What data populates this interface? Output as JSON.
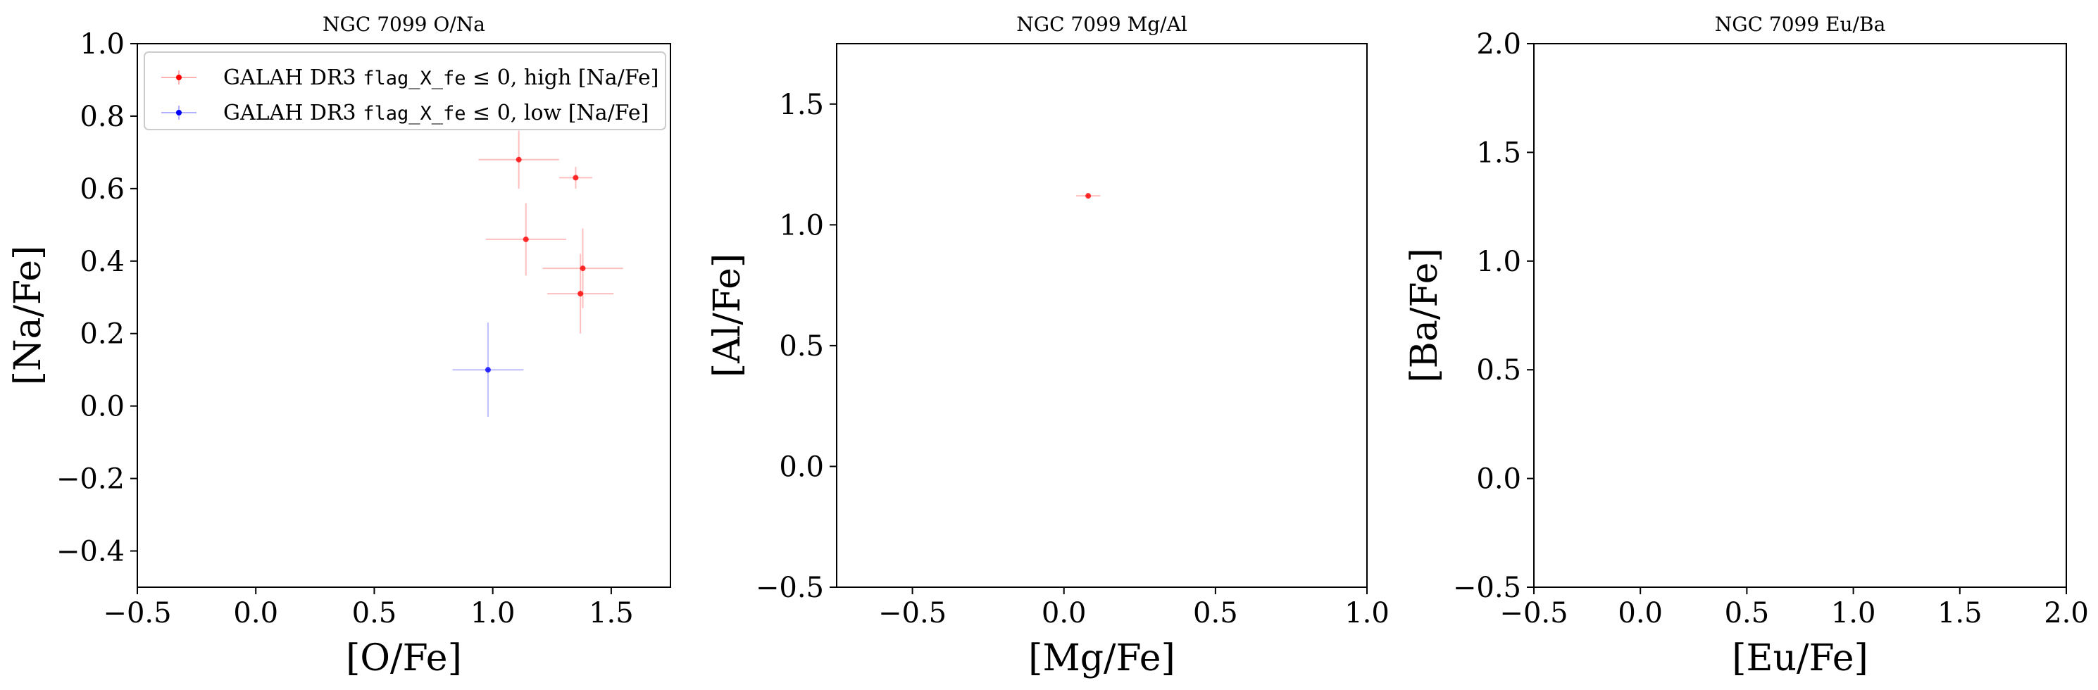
{
  "figure": {
    "background": "#ffffff"
  },
  "colors": {
    "high": "#ff0000",
    "low": "#0000ff",
    "axis": "#000000",
    "legend_border": "#cccccc"
  },
  "chart_data": [
    {
      "type": "scatter",
      "title": "NGC 7099 O/Na",
      "xlabel": "[O/Fe]",
      "ylabel": "[Na/Fe]",
      "xlim": [
        -0.5,
        1.75
      ],
      "ylim": [
        -0.5,
        1.0
      ],
      "xticks": [
        -0.5,
        0.0,
        0.5,
        1.0,
        1.5
      ],
      "xtick_labels": [
        "−0.5",
        "0.0",
        "0.5",
        "1.0",
        "1.5"
      ],
      "yticks": [
        -0.4,
        -0.2,
        0.0,
        0.2,
        0.4,
        0.6,
        0.8,
        1.0
      ],
      "ytick_labels": [
        "−0.4",
        "−0.2",
        "0.0",
        "0.2",
        "0.4",
        "0.6",
        "0.8",
        "1.0"
      ],
      "grid": false,
      "legend": {
        "placement": "upper-left",
        "entries": [
          {
            "series": 0,
            "pre": "GALAH DR3 ",
            "mono": "flag_X_fe",
            "post": " ≤ 0, high [Na/Fe]"
          },
          {
            "series": 1,
            "pre": "GALAH DR3 ",
            "mono": "flag_X_fe",
            "post": " ≤ 0, low [Na/Fe]"
          }
        ]
      },
      "series": [
        {
          "color_key": "high",
          "points": [
            {
              "x": 1.11,
              "y": 0.68,
              "xerr": 0.17,
              "yerr": 0.08
            },
            {
              "x": 1.35,
              "y": 0.63,
              "xerr": 0.07,
              "yerr": 0.03
            },
            {
              "x": 1.14,
              "y": 0.46,
              "xerr": 0.17,
              "yerr": 0.1
            },
            {
              "x": 1.38,
              "y": 0.38,
              "xerr": 0.17,
              "yerr": 0.11
            },
            {
              "x": 1.37,
              "y": 0.31,
              "xerr": 0.14,
              "yerr": 0.11
            }
          ]
        },
        {
          "color_key": "low",
          "points": [
            {
              "x": 0.98,
              "y": 0.1,
              "xerr": 0.15,
              "yerr": 0.13
            }
          ]
        }
      ]
    },
    {
      "type": "scatter",
      "title": "NGC 7099 Mg/Al",
      "xlabel": "[Mg/Fe]",
      "ylabel": "[Al/Fe]",
      "xlim": [
        -0.75,
        1.0
      ],
      "ylim": [
        -0.5,
        1.75
      ],
      "xticks": [
        -0.5,
        0.0,
        0.5,
        1.0
      ],
      "xtick_labels": [
        "−0.5",
        "0.0",
        "0.5",
        "1.0"
      ],
      "yticks": [
        -0.5,
        0.0,
        0.5,
        1.0,
        1.5
      ],
      "ytick_labels": [
        "−0.5",
        "0.0",
        "0.5",
        "1.0",
        "1.5"
      ],
      "grid": false,
      "series": [
        {
          "color_key": "high",
          "points": [
            {
              "x": 0.08,
              "y": 1.12,
              "xerr": 0.04,
              "yerr": 0.01
            }
          ]
        }
      ]
    },
    {
      "type": "scatter",
      "title": "NGC 7099 Eu/Ba",
      "xlabel": "[Eu/Fe]",
      "ylabel": "[Ba/Fe]",
      "xlim": [
        -0.5,
        2.0
      ],
      "ylim": [
        -0.5,
        2.0
      ],
      "xticks": [
        -0.5,
        0.0,
        0.5,
        1.0,
        1.5,
        2.0
      ],
      "xtick_labels": [
        "−0.5",
        "0.0",
        "0.5",
        "1.0",
        "1.5",
        "2.0"
      ],
      "yticks": [
        -0.5,
        0.0,
        0.5,
        1.0,
        1.5,
        2.0
      ],
      "ytick_labels": [
        "−0.5",
        "0.0",
        "0.5",
        "1.0",
        "1.5",
        "2.0"
      ],
      "grid": false,
      "series": []
    }
  ]
}
